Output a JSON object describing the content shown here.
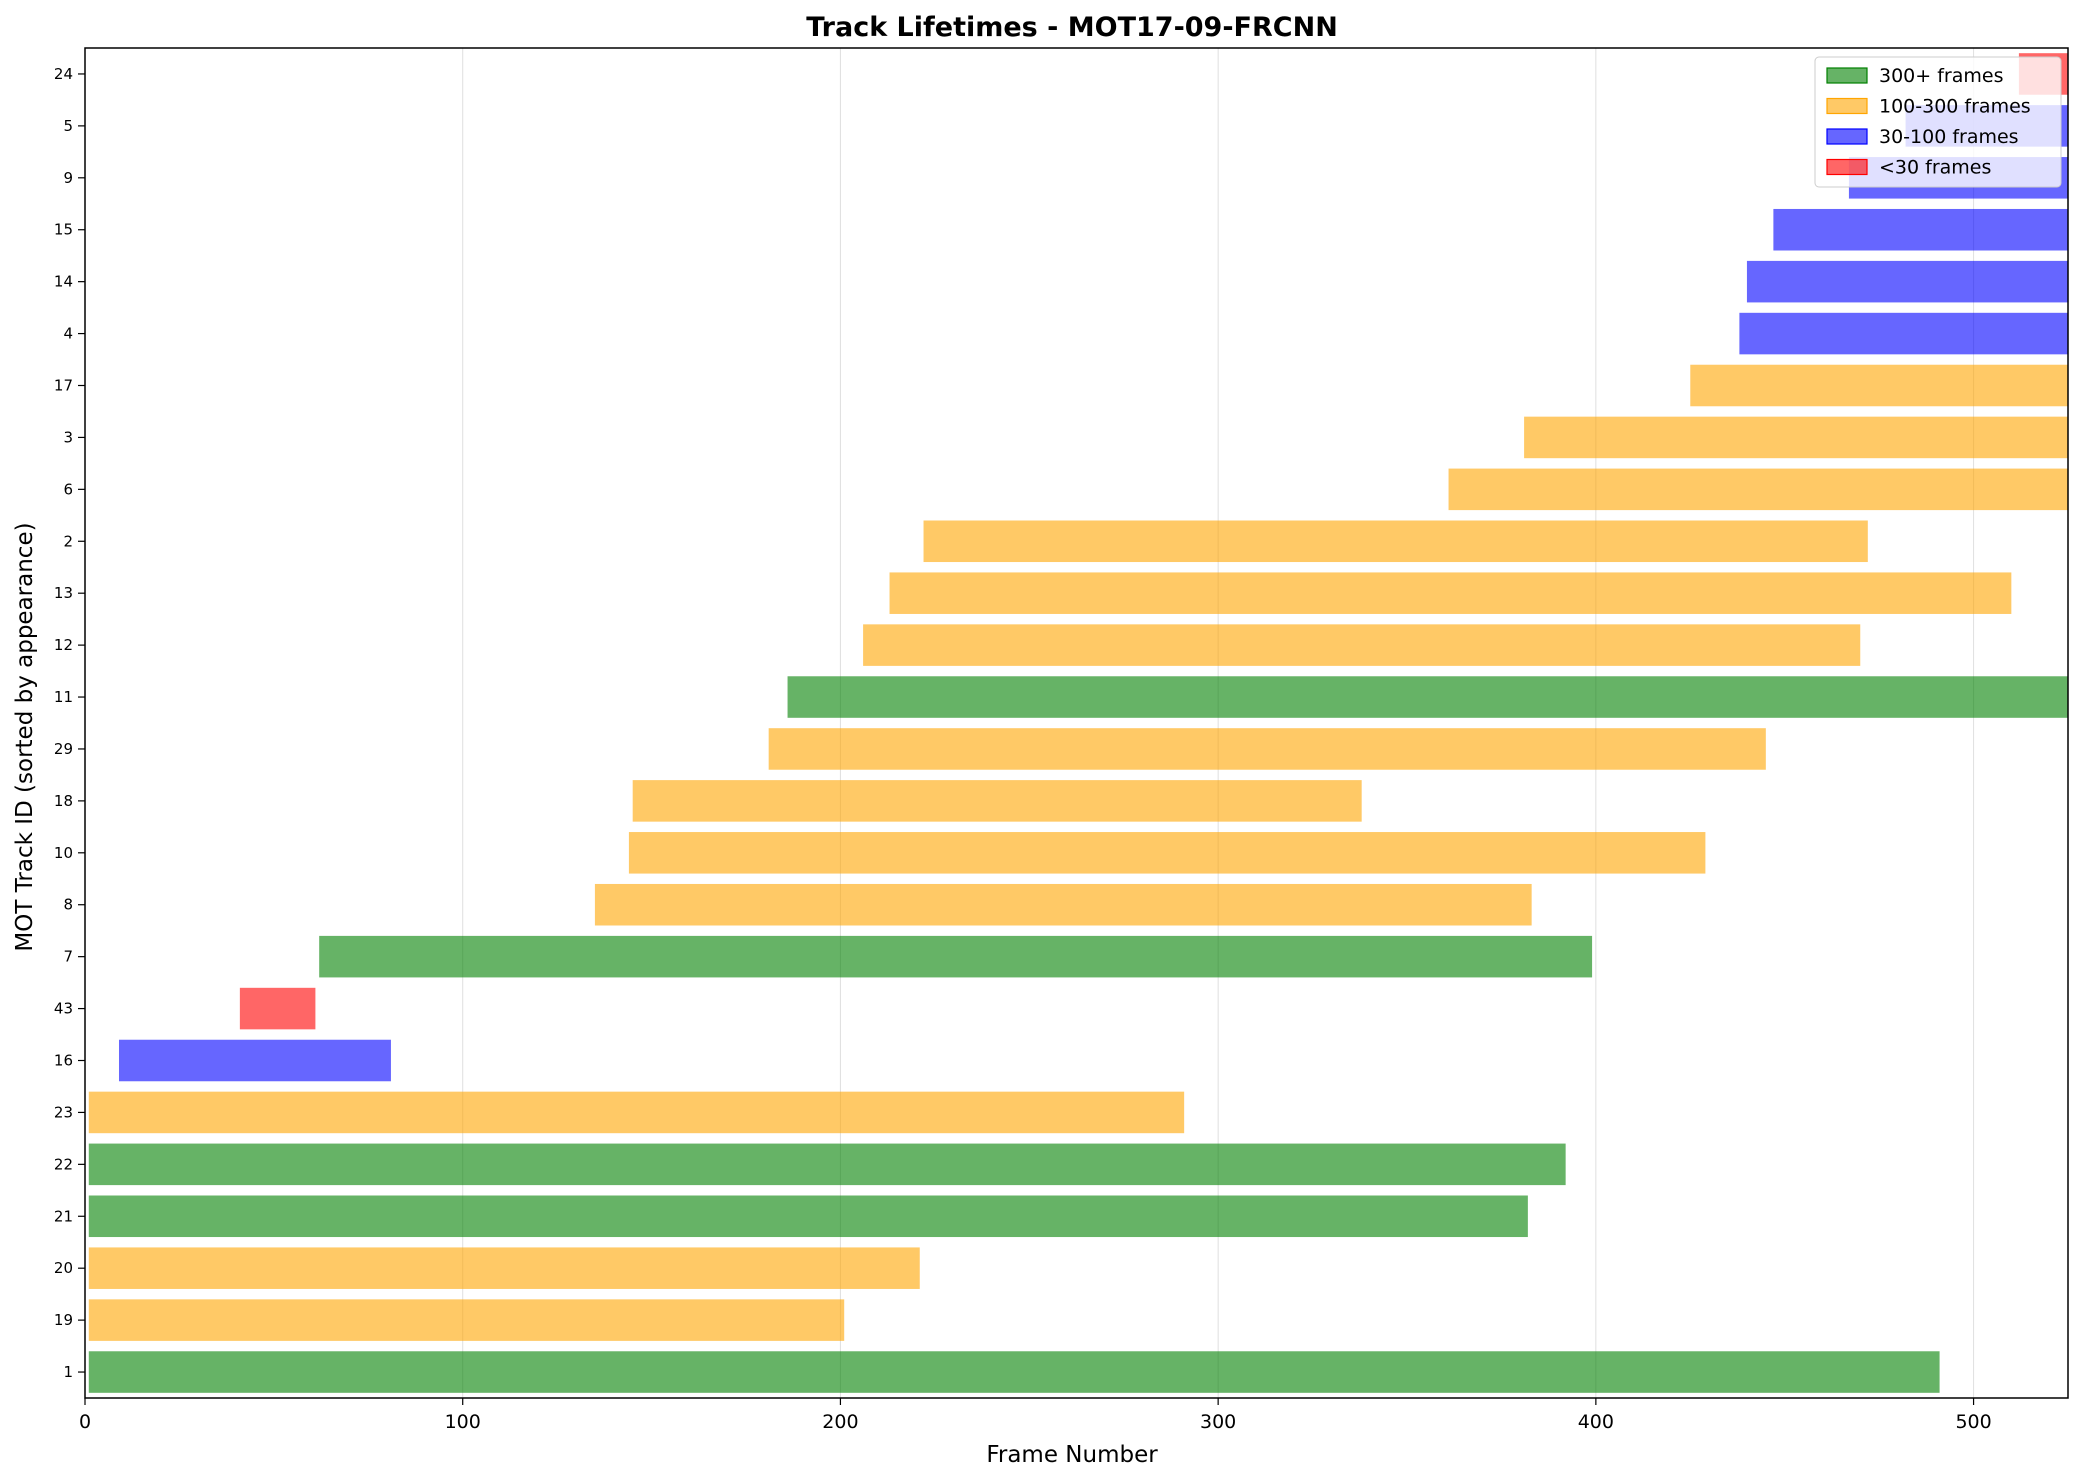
{
  "chart_data": {
    "type": "bar",
    "orientation": "horizontal",
    "title": "Track Lifetimes - MOT17-09-FRCNN",
    "xlabel": "Frame Number",
    "ylabel": "MOT Track ID (sorted by appearance)",
    "xlim": [
      0,
      525
    ],
    "xticks": [
      0,
      100,
      200,
      300,
      400,
      500
    ],
    "grid": "x",
    "legend_position": "top-right",
    "legend": [
      {
        "label": "300+ frames",
        "color": "#008000"
      },
      {
        "label": "100-300 frames",
        "color": "#FFA500"
      },
      {
        "label": "30-100 frames",
        "color": "#0000FF"
      },
      {
        "label": "<30 frames",
        "color": "#FF0000"
      }
    ],
    "tracks": [
      {
        "id": "1",
        "start": 1,
        "end": 491,
        "category": "300+ frames"
      },
      {
        "id": "19",
        "start": 1,
        "end": 201,
        "category": "100-300 frames"
      },
      {
        "id": "20",
        "start": 1,
        "end": 221,
        "category": "100-300 frames"
      },
      {
        "id": "21",
        "start": 1,
        "end": 382,
        "category": "300+ frames"
      },
      {
        "id": "22",
        "start": 1,
        "end": 392,
        "category": "300+ frames"
      },
      {
        "id": "23",
        "start": 1,
        "end": 291,
        "category": "100-300 frames"
      },
      {
        "id": "16",
        "start": 9,
        "end": 81,
        "category": "30-100 frames"
      },
      {
        "id": "43",
        "start": 41,
        "end": 61,
        "category": "<30 frames"
      },
      {
        "id": "7",
        "start": 62,
        "end": 399,
        "category": "300+ frames"
      },
      {
        "id": "8",
        "start": 135,
        "end": 383,
        "category": "100-300 frames"
      },
      {
        "id": "10",
        "start": 144,
        "end": 429,
        "category": "100-300 frames"
      },
      {
        "id": "18",
        "start": 145,
        "end": 338,
        "category": "100-300 frames"
      },
      {
        "id": "29",
        "start": 181,
        "end": 445,
        "category": "100-300 frames"
      },
      {
        "id": "11",
        "start": 186,
        "end": 525,
        "category": "300+ frames"
      },
      {
        "id": "12",
        "start": 206,
        "end": 470,
        "category": "100-300 frames"
      },
      {
        "id": "13",
        "start": 213,
        "end": 510,
        "category": "100-300 frames"
      },
      {
        "id": "2",
        "start": 222,
        "end": 472,
        "category": "100-300 frames"
      },
      {
        "id": "6",
        "start": 361,
        "end": 525,
        "category": "100-300 frames"
      },
      {
        "id": "3",
        "start": 381,
        "end": 525,
        "category": "100-300 frames"
      },
      {
        "id": "17",
        "start": 425,
        "end": 525,
        "category": "100-300 frames"
      },
      {
        "id": "4",
        "start": 438,
        "end": 525,
        "category": "30-100 frames"
      },
      {
        "id": "14",
        "start": 440,
        "end": 525,
        "category": "30-100 frames"
      },
      {
        "id": "15",
        "start": 447,
        "end": 525,
        "category": "30-100 frames"
      },
      {
        "id": "9",
        "start": 467,
        "end": 525,
        "category": "30-100 frames"
      },
      {
        "id": "5",
        "start": 482,
        "end": 525,
        "category": "30-100 frames"
      },
      {
        "id": "24",
        "start": 512,
        "end": 525,
        "category": "<30 frames"
      }
    ]
  }
}
